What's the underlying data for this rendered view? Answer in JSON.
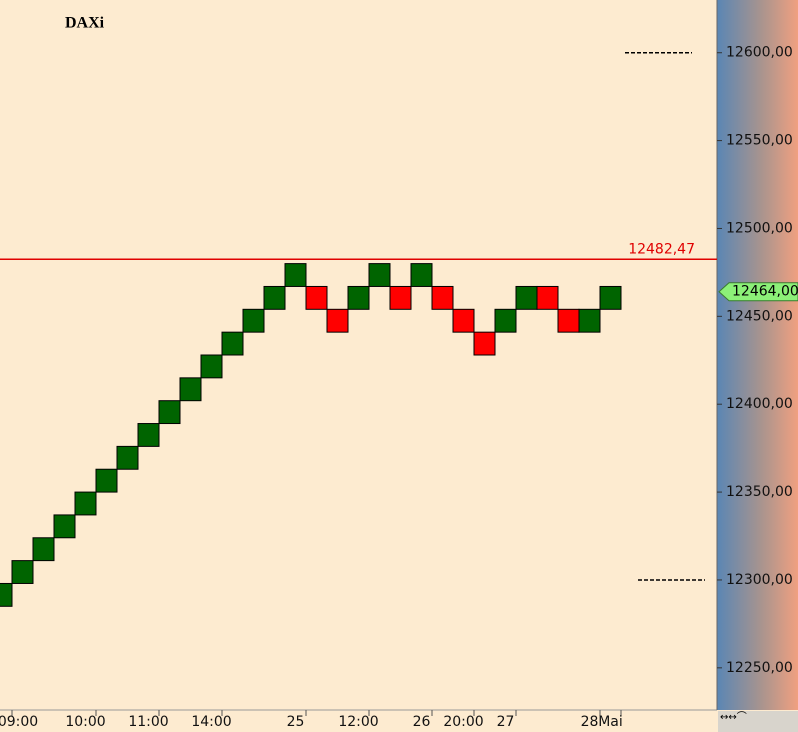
{
  "chart_data": {
    "type": "renko",
    "title": "DAXi",
    "open": [
      12285,
      12298,
      12311,
      12324,
      12337,
      12350,
      12363,
      12376,
      12389,
      12402,
      12415,
      12428,
      12441,
      12454,
      12467,
      12467,
      12454,
      12454,
      12467,
      12467,
      12467,
      12467,
      12454,
      12441,
      12441,
      12454,
      12467,
      12454,
      12441,
      12454
    ],
    "close": [
      12298,
      12311,
      12324,
      12337,
      12350,
      12363,
      12376,
      12389,
      12402,
      12415,
      12428,
      12441,
      12454,
      12467,
      12480,
      12454,
      12441,
      12467,
      12480,
      12454,
      12480,
      12454,
      12441,
      12428,
      12454,
      12467,
      12454,
      12441,
      12454,
      12467
    ],
    "categories": [
      "09:00",
      null,
      null,
      null,
      "10:00",
      null,
      null,
      "11:00",
      null,
      null,
      "14:00",
      null,
      null,
      null,
      "25",
      null,
      null,
      "12:00",
      null,
      null,
      "26",
      null,
      "20:00",
      null,
      "27",
      null,
      null,
      null,
      "28",
      "Mai"
    ],
    "up_color": "#006400",
    "down_color": "#ff0000",
    "ylim": [
      12226,
      12630
    ],
    "yticks": [
      {
        "value": 12250,
        "label": "12250,00"
      },
      {
        "value": 12300,
        "label": "12300,00"
      },
      {
        "value": 12350,
        "label": "12350,00"
      },
      {
        "value": 12400,
        "label": "12400,00"
      },
      {
        "value": 12450,
        "label": "12450,00"
      },
      {
        "value": 12500,
        "label": "12500,00"
      },
      {
        "value": 12550,
        "label": "12550,00"
      },
      {
        "value": 12600,
        "label": "12600,00"
      }
    ],
    "reference_line": {
      "value": 12482.47,
      "label": "12482,47",
      "color": "#e00000"
    },
    "last_price": {
      "value": 12464,
      "label": "12464,00",
      "color": "#8cf078"
    },
    "dashed_levels": [
      12600,
      12300
    ]
  }
}
